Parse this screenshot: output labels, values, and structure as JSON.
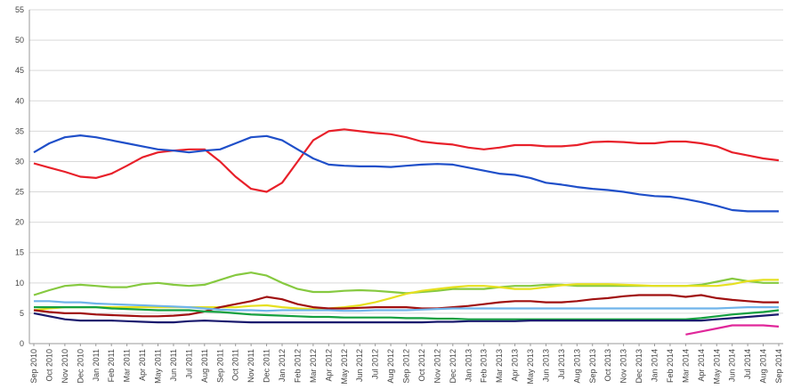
{
  "chart_data": {
    "type": "line",
    "categories": [
      "Sep 2010",
      "Oct 2010",
      "Nov 2010",
      "Dec 2010",
      "Jan 2011",
      "Feb 2011",
      "Mar 2011",
      "Apr 2011",
      "May 2011",
      "Jun 2011",
      "Jul 2011",
      "Aug 2011",
      "Sep 2011",
      "Oct 2011",
      "Nov 2011",
      "Dec 2011",
      "Jan 2012",
      "Feb 2012",
      "Mar 2012",
      "Apr 2012",
      "May 2012",
      "Jun 2012",
      "Jul 2012",
      "Aug 2012",
      "Sep 2012",
      "Oct 2012",
      "Nov 2012",
      "Dec 2012",
      "Jan 2013",
      "Feb 2013",
      "Mar 2013",
      "Apr 2013",
      "May 2013",
      "Jun 2013",
      "Jul 2013",
      "Aug 2013",
      "Sep 2013",
      "Oct 2013",
      "Nov 2013",
      "Dec 2013",
      "Jan 2014",
      "Feb 2014",
      "Mar 2014",
      "Apr 2014",
      "May 2014",
      "Jun 2014",
      "Jul 2014",
      "Aug 2014",
      "Sep 2014"
    ],
    "ylim": [
      0,
      55
    ],
    "yticks": [
      0,
      5,
      10,
      15,
      20,
      25,
      30,
      35,
      40,
      45,
      50,
      55
    ],
    "grid": true,
    "series": [
      {
        "color": "#e8202a",
        "values": [
          29.7,
          29,
          28.3,
          27.5,
          27.3,
          28,
          29.3,
          30.7,
          31.5,
          31.8,
          32,
          32,
          30,
          27.5,
          25.5,
          25,
          26.5,
          30,
          33.5,
          35,
          35.3,
          35,
          34.7,
          34.5,
          34,
          33.3,
          33,
          32.8,
          32.3,
          32,
          32.3,
          32.7,
          32.7,
          32.5,
          32.5,
          32.7,
          33.2,
          33.3,
          33.2,
          33,
          33,
          33.3,
          33.3,
          33,
          32.5,
          31.5,
          31,
          30.5,
          30.2
        ]
      },
      {
        "color": "#1f4fc9",
        "values": [
          31.5,
          33,
          34,
          34.3,
          34,
          33.5,
          33,
          32.5,
          32,
          31.8,
          31.5,
          31.8,
          32,
          33,
          34,
          34.2,
          33.5,
          32,
          30.5,
          29.5,
          29.3,
          29.2,
          29.2,
          29.1,
          29.3,
          29.5,
          29.6,
          29.5,
          29,
          28.5,
          28,
          27.8,
          27.3,
          26.5,
          26.2,
          25.8,
          25.5,
          25.3,
          25,
          24.6,
          24.3,
          24.2,
          23.8,
          23.3,
          22.7,
          22,
          21.8,
          21.8,
          21.8
        ]
      },
      {
        "color": "#86c940",
        "values": [
          8,
          8.8,
          9.5,
          9.7,
          9.5,
          9.3,
          9.3,
          9.8,
          10,
          9.7,
          9.5,
          9.7,
          10.5,
          11.3,
          11.7,
          11.2,
          10,
          9,
          8.5,
          8.5,
          8.7,
          8.8,
          8.7,
          8.5,
          8.3,
          8.5,
          8.7,
          9,
          9,
          9,
          9.3,
          9.5,
          9.5,
          9.7,
          9.7,
          9.5,
          9.5,
          9.5,
          9.5,
          9.5,
          9.5,
          9.5,
          9.5,
          9.7,
          10.2,
          10.7,
          10.3,
          10,
          10
        ]
      },
      {
        "color": "#e6e020",
        "values": [
          5.5,
          5.8,
          6,
          6,
          6,
          6,
          6,
          6,
          6,
          6,
          6,
          6,
          6,
          6,
          6.2,
          6.3,
          6,
          5.8,
          5.7,
          5.8,
          6,
          6.3,
          6.8,
          7.5,
          8.2,
          8.7,
          9,
          9.3,
          9.5,
          9.5,
          9.3,
          9,
          9,
          9.3,
          9.6,
          9.8,
          9.8,
          9.8,
          9.7,
          9.6,
          9.5,
          9.5,
          9.5,
          9.5,
          9.5,
          9.8,
          10.3,
          10.5,
          10.5
        ]
      },
      {
        "color": "#a01010",
        "values": [
          5.5,
          5.2,
          5,
          5,
          4.8,
          4.7,
          4.6,
          4.5,
          4.5,
          4.6,
          4.8,
          5.3,
          6,
          6.5,
          7,
          7.7,
          7.3,
          6.5,
          6,
          5.8,
          5.8,
          5.9,
          6,
          6,
          6,
          5.8,
          5.8,
          6,
          6.2,
          6.5,
          6.8,
          7,
          7,
          6.8,
          6.8,
          7,
          7.3,
          7.5,
          7.8,
          8,
          8,
          8,
          7.7,
          8,
          7.5,
          7.2,
          7,
          6.8,
          6.8
        ]
      },
      {
        "color": "#6fb4ea",
        "values": [
          7,
          7,
          6.8,
          6.8,
          6.6,
          6.5,
          6.4,
          6.3,
          6.2,
          6.1,
          6,
          5.8,
          5.6,
          5.5,
          5.5,
          5.4,
          5.5,
          5.5,
          5.5,
          5.5,
          5.4,
          5.4,
          5.5,
          5.5,
          5.5,
          5.6,
          5.7,
          5.8,
          5.8,
          5.8,
          5.8,
          5.8,
          5.8,
          5.8,
          5.8,
          5.8,
          5.8,
          5.8,
          5.8,
          5.8,
          5.8,
          5.8,
          5.8,
          5.8,
          5.8,
          5.9,
          6,
          6,
          6
        ]
      },
      {
        "color": "#14a040",
        "values": [
          6,
          6,
          6,
          6,
          6,
          5.8,
          5.7,
          5.6,
          5.5,
          5.5,
          5.5,
          5.3,
          5.2,
          5,
          4.8,
          4.7,
          4.6,
          4.5,
          4.4,
          4.4,
          4.3,
          4.3,
          4.3,
          4.3,
          4.2,
          4.2,
          4.1,
          4.1,
          4,
          4,
          4,
          4,
          4,
          4,
          4,
          4,
          4,
          4,
          4,
          4,
          4,
          4,
          4,
          4.2,
          4.5,
          4.8,
          5,
          5.2,
          5.5
        ]
      },
      {
        "color": "#1a1a6e",
        "values": [
          5,
          4.5,
          4,
          3.8,
          3.8,
          3.8,
          3.7,
          3.6,
          3.5,
          3.5,
          3.7,
          3.8,
          3.7,
          3.6,
          3.5,
          3.5,
          3.5,
          3.5,
          3.5,
          3.5,
          3.5,
          3.5,
          3.5,
          3.5,
          3.5,
          3.5,
          3.6,
          3.6,
          3.7,
          3.7,
          3.7,
          3.7,
          3.8,
          3.8,
          3.8,
          3.8,
          3.8,
          3.8,
          3.8,
          3.8,
          3.8,
          3.8,
          3.8,
          3.8,
          4,
          4.2,
          4.4,
          4.6,
          4.8
        ]
      },
      {
        "color": "#e0279a",
        "values": [
          null,
          null,
          null,
          null,
          null,
          null,
          null,
          null,
          null,
          null,
          null,
          null,
          null,
          null,
          null,
          null,
          null,
          null,
          null,
          null,
          null,
          null,
          null,
          null,
          null,
          null,
          null,
          null,
          null,
          null,
          null,
          null,
          null,
          null,
          null,
          null,
          null,
          null,
          null,
          null,
          null,
          null,
          1.5,
          2,
          2.5,
          3,
          3,
          3,
          2.8
        ]
      }
    ]
  }
}
